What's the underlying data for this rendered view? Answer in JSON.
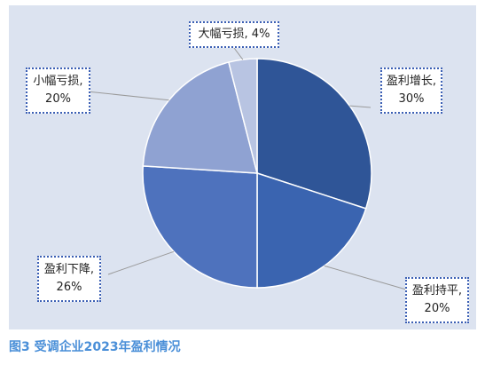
{
  "chart_data": {
    "type": "pie",
    "slices": [
      {
        "label": "盈利增长",
        "value": 30,
        "value_text": "30%",
        "color": "#2f5597"
      },
      {
        "label": "盈利持平",
        "value": 20,
        "value_text": "20%",
        "color": "#3a64b0"
      },
      {
        "label": "盈利下降",
        "value": 26,
        "value_text": "26%",
        "color": "#4e72bd"
      },
      {
        "label": "小幅亏损",
        "value": 20,
        "value_text": "20%",
        "color": "#8fa2d2"
      },
      {
        "label": "大幅亏损",
        "value": 4,
        "value_text": "4%",
        "color": "#b8c4e2"
      }
    ],
    "start": "12 o'clock",
    "direction": "clockwise",
    "background": "#dce3f0",
    "label_style": "dotted-border callouts with leader lines"
  },
  "labels": {
    "grow_name": "盈利增长,",
    "grow_pct": "30%",
    "flat_name": "盈利持平,",
    "flat_pct": "20%",
    "down_name": "盈利下降,",
    "down_pct": "26%",
    "small_loss_name": "小幅亏损,",
    "small_loss_pct": "20%",
    "big_loss_text": "大幅亏损, 4%"
  },
  "caption": "图3 受调企业2023年盈利情况",
  "caption_color": "#4a8fd8"
}
